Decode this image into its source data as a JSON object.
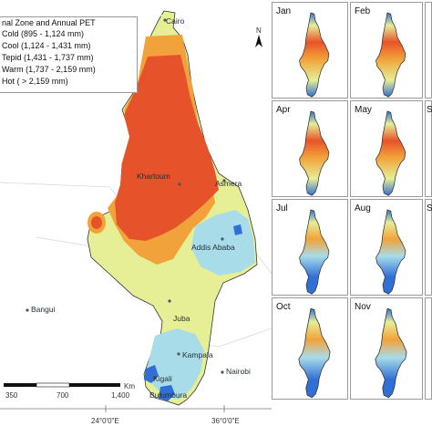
{
  "legend": {
    "title": "nal Zone and Annual PET",
    "classes": [
      {
        "label": "Cold (895 - 1,124 mm)",
        "color": "#2f6fd6"
      },
      {
        "label": "Cool (1,124 - 1,431 mm)",
        "color": "#a8dce8"
      },
      {
        "label": "Tepid (1,431 - 1,737 mm)",
        "color": "#e6ee96"
      },
      {
        "label": "Warm (1,737 - 2,159 mm)",
        "color": "#f2a23a"
      },
      {
        "label": "Hot ( > 2,159 mm)",
        "color": "#e6532a"
      }
    ]
  },
  "cities": {
    "cairo": "Cairo",
    "khartoum": "Khartoum",
    "asmera": "Asmera",
    "addis": "Addis Ababa",
    "juba": "Juba",
    "bangui": "Bangui",
    "kampala": "Kampala",
    "nairobi": "Nairobi",
    "kigali": "Kigali",
    "bujumbura": "Bujumbura"
  },
  "north_label": "N",
  "scale_bar": {
    "ticks": [
      "350",
      "700",
      "1,400"
    ],
    "unit": "Km"
  },
  "longitude_labels": [
    "24°0'0\"E",
    "36°0'0\"E"
  ],
  "months": [
    "Jan",
    "Feb",
    "",
    "Apr",
    "May",
    "S",
    "Jul",
    "Aug",
    "S",
    "Oct",
    "Nov",
    ""
  ]
}
